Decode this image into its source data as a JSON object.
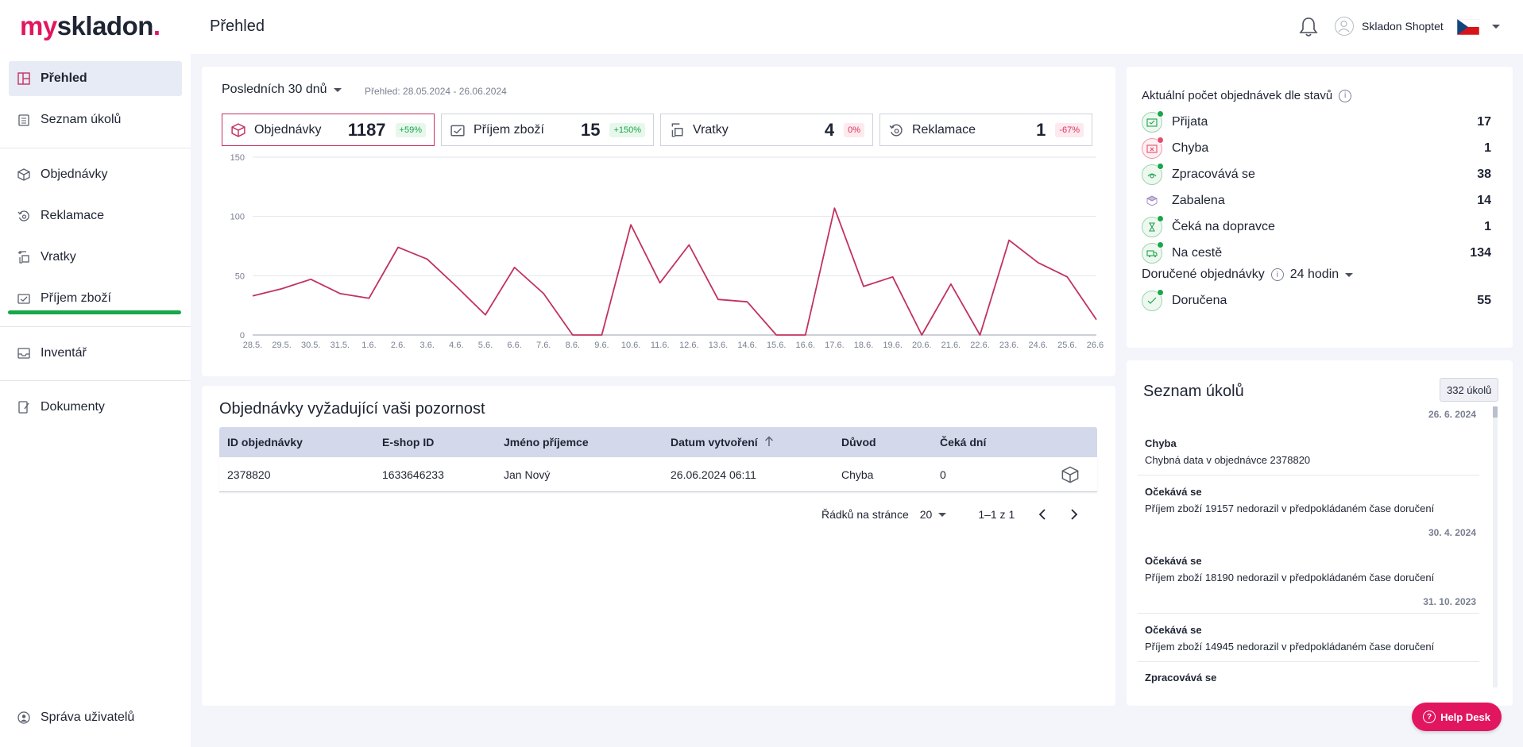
{
  "header": {
    "logo_part1": "my",
    "logo_part2": "skladon",
    "logo_dot": ".",
    "page_title": "Přehled",
    "user_name": "Skladon Shoptet"
  },
  "sidebar": {
    "items": [
      {
        "label": "Přehled",
        "icon": "dashboard-icon"
      },
      {
        "label": "Seznam úkolů",
        "icon": "clipboard-icon"
      },
      {
        "label": "Objednávky",
        "icon": "box-icon"
      },
      {
        "label": "Reklamace",
        "icon": "return-circle-icon"
      },
      {
        "label": "Vratky",
        "icon": "return-arrow-icon"
      },
      {
        "label": "Příjem zboží",
        "icon": "receipt-icon"
      },
      {
        "label": "Inventář",
        "icon": "inbox-icon"
      },
      {
        "label": "Dokumenty",
        "icon": "document-icon"
      },
      {
        "label": "Správa uživatelů",
        "icon": "users-globe-icon"
      }
    ]
  },
  "filters": {
    "range_label": "Posledních 30 dnů",
    "range_text": "Přehled: 28.05.2024 - 26.06.2024"
  },
  "kpis": [
    {
      "label": "Objednávky",
      "value": "1187",
      "delta": "+59%",
      "trend": "positive"
    },
    {
      "label": "Příjem zboží",
      "value": "15",
      "delta": "+150%",
      "trend": "positive"
    },
    {
      "label": "Vratky",
      "value": "4",
      "delta": "0%",
      "trend": "negative"
    },
    {
      "label": "Reklamace",
      "value": "1",
      "delta": "-67%",
      "trend": "negative"
    }
  ],
  "chart_data": {
    "type": "line",
    "title": "",
    "xlabel": "",
    "ylabel": "",
    "ylim": [
      0,
      150
    ],
    "yticks": [
      0,
      50,
      100,
      150
    ],
    "grid": true,
    "color": "#c2325f",
    "x": [
      "28.5.",
      "29.5.",
      "30.5.",
      "31.5.",
      "1.6.",
      "2.6.",
      "3.6.",
      "4.6.",
      "5.6.",
      "6.6.",
      "7.6.",
      "8.6.",
      "9.6.",
      "10.6.",
      "11.6.",
      "12.6.",
      "13.6.",
      "14.6.",
      "15.6.",
      "16.6.",
      "17.6.",
      "18.6.",
      "19.6.",
      "20.6.",
      "21.6.",
      "22.6.",
      "23.6.",
      "24.6.",
      "25.6.",
      "26.6."
    ],
    "series": [
      {
        "values": [
          33,
          39,
          47,
          35,
          31,
          74,
          64,
          41,
          17,
          57,
          35,
          0,
          0,
          93,
          44,
          76,
          30,
          28,
          0,
          0,
          107,
          41,
          49,
          0,
          43,
          0,
          80,
          61,
          49,
          13
        ]
      }
    ]
  },
  "attention": {
    "title": "Objednávky vyžadující vaši pozornost",
    "columns": [
      "ID objednávky",
      "E-shop ID",
      "Jméno příjemce",
      "Datum vytvoření",
      "Důvod",
      "Čeká dní"
    ],
    "rows": [
      {
        "id": "2378820",
        "eshop_id": "1633646233",
        "name": "Jan Nový",
        "created": "26.06.2024 06:11",
        "reason": "Chyba",
        "days": "0"
      }
    ],
    "rows_per_page_label": "Řádků na stránce",
    "rows_per_page": "20",
    "range": "1–1 z 1"
  },
  "status": {
    "title": "Aktuální počet objednávek dle stavů",
    "items": [
      {
        "label": "Přijata",
        "value": "17",
        "icon": "inbox-check-icon"
      },
      {
        "label": "Chyba",
        "value": "1",
        "icon": "inbox-error-icon"
      },
      {
        "label": "Zpracovává se",
        "value": "38",
        "icon": "processing-icon"
      },
      {
        "label": "Zabalena",
        "value": "14",
        "icon": "package-icon"
      },
      {
        "label": "Čeká na dopravce",
        "value": "1",
        "icon": "hourglass-icon"
      },
      {
        "label": "Na cestě",
        "value": "134",
        "icon": "truck-icon"
      }
    ],
    "delivered_title": "Doručené objednávky",
    "delivered_period": "24 hodin",
    "delivered": {
      "label": "Doručena",
      "value": "55",
      "icon": "delivered-icon"
    }
  },
  "tasks": {
    "title": "Seznam úkolů",
    "count": "332 úkolů",
    "items": [
      {
        "date": "26. 6. 2024",
        "title": "Chyba",
        "desc": "Chybná data v objednávce 2378820"
      },
      {
        "date": "",
        "title": "Očekává se",
        "desc": "Příjem zboží 19157 nedorazil v předpokládaném čase doručení"
      },
      {
        "date": "30. 4. 2024",
        "title": "Očekává se",
        "desc": "Příjem zboží 18190 nedorazil v předpokládaném čase doručení"
      },
      {
        "date": "31. 10. 2023",
        "title": "Očekává se",
        "desc": "Příjem zboží 14945 nedorazil v předpokládaném čase doručení"
      },
      {
        "date": "",
        "title": "Zpracovává se",
        "desc": ""
      }
    ]
  },
  "helpdesk": {
    "label": "Help Desk"
  },
  "colors": {
    "brand": "#e2165f",
    "line": "#c2325f",
    "positive": "#1aa64a",
    "negative": "#d7335b"
  }
}
